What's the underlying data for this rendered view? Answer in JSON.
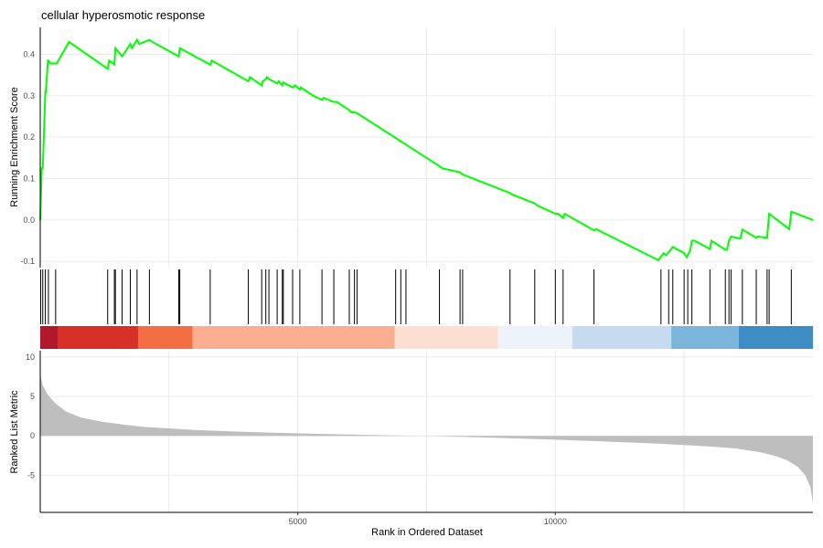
{
  "chart_data": {
    "type": "line",
    "title": "cellular hyperosmotic response",
    "x_range": [
      1,
      15000
    ],
    "x_ticks": [
      5000,
      10000
    ],
    "xlabel": "Rank in Ordered Dataset",
    "grid": true,
    "legend": "none",
    "enrichment_panel": {
      "ylabel": "Running Enrichment Score",
      "ylim": [
        -0.115,
        0.465
      ],
      "y_ticks": [
        -0.1,
        0.0,
        0.1,
        0.2,
        0.3,
        0.4
      ],
      "y_tick_labels": [
        "-0.1",
        "0.0",
        "0.1",
        "0.2",
        "0.3",
        "0.4"
      ],
      "line_color": "#00ff00",
      "series": [
        {
          "x": [
            1,
            30,
            50,
            100,
            110,
            150,
            160,
            200,
            210,
            300,
            320,
            560,
            1310,
            1340,
            1440,
            1460,
            1590,
            1750,
            1780,
            1880,
            1920,
            2120,
            2150,
            2690,
            2710,
            3300,
            3330,
            4040,
            4070,
            4300,
            4320,
            4380,
            4400,
            4440,
            4600,
            4630,
            4700,
            4720,
            4900,
            4950,
            5040,
            5060,
            5300,
            5470,
            5500,
            5700,
            5760,
            6000,
            6040,
            6100,
            6150,
            7750,
            7800,
            8150,
            8200,
            9120,
            9150,
            9600,
            9650,
            10000,
            10050,
            10150,
            10180,
            10750,
            10790,
            12000,
            12100,
            12150,
            12250,
            12280,
            12500,
            12550,
            12620,
            12650,
            12700,
            13000,
            13030,
            13300,
            13330,
            13370,
            13410,
            13590,
            13630,
            13900,
            13930,
            14110,
            14150,
            14540,
            14580,
            15000
          ],
          "y": [
            0,
            0.125,
            0.125,
            0.31,
            0.31,
            0.385,
            0.385,
            0.378,
            0.378,
            0.378,
            0.378,
            0.43,
            0.365,
            0.385,
            0.375,
            0.415,
            0.395,
            0.425,
            0.415,
            0.435,
            0.425,
            0.435,
            0.432,
            0.395,
            0.415,
            0.375,
            0.385,
            0.335,
            0.345,
            0.325,
            0.335,
            0.34,
            0.345,
            0.34,
            0.33,
            0.335,
            0.325,
            0.332,
            0.32,
            0.325,
            0.315,
            0.32,
            0.3,
            0.29,
            0.295,
            0.285,
            0.285,
            0.265,
            0.26,
            0.26,
            0.258,
            0.13,
            0.125,
            0.115,
            0.11,
            0.065,
            0.062,
            0.04,
            0.035,
            0.015,
            0.015,
            0.005,
            0.015,
            -0.025,
            -0.022,
            -0.097,
            -0.08,
            -0.085,
            -0.07,
            -0.065,
            -0.08,
            -0.09,
            -0.072,
            -0.05,
            -0.05,
            -0.07,
            -0.05,
            -0.072,
            -0.072,
            -0.05,
            -0.04,
            -0.045,
            -0.023,
            -0.043,
            -0.04,
            -0.043,
            0.015,
            -0.022,
            0.02,
            0.0
          ]
        }
      ]
    },
    "hit_positions": [
      10,
      50,
      100,
      160,
      300,
      1310,
      1440,
      1460,
      1590,
      1750,
      1880,
      2120,
      2690,
      2710,
      3300,
      4040,
      4300,
      4380,
      4440,
      4600,
      4700,
      4720,
      4900,
      5040,
      5470,
      5700,
      6000,
      6100,
      6150,
      6900,
      7000,
      7100,
      7750,
      8150,
      8200,
      9120,
      9600,
      10000,
      10150,
      10750,
      12050,
      12200,
      12280,
      12500,
      12570,
      12650,
      13000,
      13300,
      13370,
      13410,
      13630,
      13900,
      14110,
      14150,
      14580
    ],
    "ranking_heatmap": {
      "segments": [
        {
          "from": 0,
          "to": 350,
          "color": "#b2182b"
        },
        {
          "from": 350,
          "to": 1900,
          "color": "#d73027"
        },
        {
          "from": 1900,
          "to": 2960,
          "color": "#f46d43"
        },
        {
          "from": 2960,
          "to": 6880,
          "color": "#fcae91"
        },
        {
          "from": 6880,
          "to": 8890,
          "color": "#fde0d2"
        },
        {
          "from": 8890,
          "to": 10330,
          "color": "#eef3fb"
        },
        {
          "from": 10330,
          "to": 12250,
          "color": "#c6dbef"
        },
        {
          "from": 12250,
          "to": 13560,
          "color": "#7bb5d9"
        },
        {
          "from": 13560,
          "to": 15000,
          "color": "#3e8cc4"
        }
      ]
    },
    "ranked_metric_panel": {
      "ylabel": "Ranked List Metric",
      "ylim": [
        -9.7,
        10.8
      ],
      "y_ticks": [
        -5,
        0,
        5,
        10
      ],
      "y_tick_labels": [
        "-5",
        "0",
        "5",
        "10"
      ],
      "fill_color": "#bebebe",
      "x": [
        1,
        50,
        150,
        300,
        500,
        800,
        1200,
        1600,
        2000,
        2500,
        3000,
        4000,
        5000,
        6000,
        7000,
        7500,
        8000,
        9000,
        10000,
        11000,
        12000,
        13000,
        13500,
        14000,
        14300,
        14500,
        14700,
        14850,
        14950,
        15000
      ],
      "y": [
        7.8,
        6.4,
        5.2,
        4.1,
        3.1,
        2.3,
        1.8,
        1.45,
        1.15,
        0.95,
        0.75,
        0.5,
        0.32,
        0.17,
        0.05,
        0.0,
        -0.08,
        -0.28,
        -0.48,
        -0.72,
        -0.98,
        -1.35,
        -1.6,
        -2.1,
        -2.6,
        -3.1,
        -3.9,
        -5.0,
        -6.5,
        -8.6
      ]
    }
  }
}
